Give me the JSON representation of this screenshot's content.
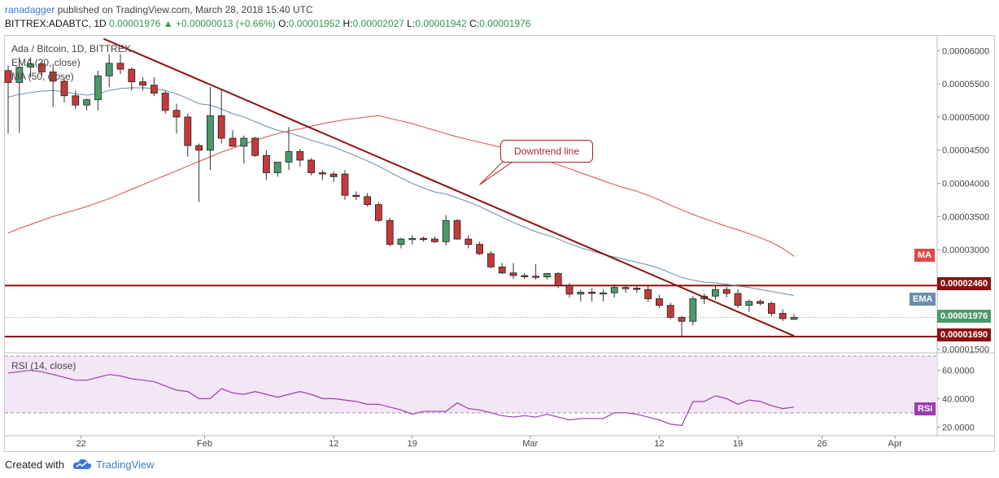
{
  "header": {
    "user": "ranadagger",
    "published": "published on TradingView.com, March 28, 2018 15:40 UTC",
    "symbol_line": "BITTREX:ADABTC, 1D",
    "last": "0.00001976",
    "change": "+0.00000013 (+0.66%)",
    "ohlc": {
      "O": "0.00001952",
      "H": "0.00002027",
      "L": "0.00001942",
      "C": "0.00001976"
    }
  },
  "legend": {
    "title": "Ada / Bitcoin, 1D, BITTREX",
    "ema": "EMA (20, close)",
    "ma": "MA (50, close)",
    "rsi": "RSI (14, close)"
  },
  "annotation": {
    "text": "Downtrend line"
  },
  "tags": {
    "ma": "MA",
    "resistance": "0.00002460",
    "ema": "EMA",
    "last": "0.00001976",
    "support": "0.00001690",
    "rsi": "RSI"
  },
  "colors": {
    "up": "#4a9a6a",
    "down": "#c43a3a",
    "ema": "#6a8caf",
    "ma": "#e04848",
    "trend": "#8b1111",
    "rsi": "#9b3bb0",
    "rsi_band": "#f3e6f6"
  },
  "footer": {
    "created_with": "Created with",
    "brand": "TradingView"
  },
  "chart_data": {
    "type": "candlestick",
    "price_axis": {
      "ticks": [
        "0.00006000",
        "0.00005500",
        "0.00005000",
        "0.00004500",
        "0.00004000",
        "0.00003500",
        "0.00003000",
        "0.00001500"
      ],
      "tick_values": [
        6e-05,
        5.5e-05,
        5e-05,
        4.5e-05,
        4e-05,
        3.5e-05,
        3e-05,
        1.5e-05
      ],
      "range": [
        1.47e-05,
        6.2e-05
      ]
    },
    "rsi_axis": {
      "ticks": [
        "60.0000",
        "40.0000",
        "20.0000"
      ],
      "tick_values": [
        60,
        40,
        20
      ],
      "range": [
        15,
        70
      ],
      "bands": [
        70,
        30
      ]
    },
    "x_axis": {
      "labels": [
        "22",
        "Feb",
        "12",
        "19",
        "Mar",
        "12",
        "19",
        "26",
        "Apr"
      ],
      "label_index": [
        6.5,
        17.5,
        29,
        36,
        46.5,
        58,
        65,
        72.5,
        79
      ]
    },
    "candles": [
      [
        5.7e-05,
        5.78e-05,
        4.75e-05,
        5.52e-05
      ],
      [
        5.52e-05,
        5.9e-05,
        4.76e-05,
        5.75e-05
      ],
      [
        5.75e-05,
        5.9e-05,
        5.6e-05,
        5.8e-05
      ],
      [
        5.8e-05,
        5.85e-05,
        5.62e-05,
        5.68e-05
      ],
      [
        5.68e-05,
        5.8e-05,
        5.15e-05,
        5.54e-05
      ],
      [
        5.54e-05,
        5.6e-05,
        5.22e-05,
        5.32e-05
      ],
      [
        5.32e-05,
        5.4e-05,
        5.12e-05,
        5.18e-05
      ],
      [
        5.18e-05,
        5.28e-05,
        5.1e-05,
        5.26e-05
      ],
      [
        5.26e-05,
        5.7e-05,
        5.1e-05,
        5.62e-05
      ],
      [
        5.62e-05,
        5.95e-05,
        5.45e-05,
        5.81e-05
      ],
      [
        5.81e-05,
        5.95e-05,
        5.65e-05,
        5.72e-05
      ],
      [
        5.72e-05,
        5.75e-05,
        5.4e-05,
        5.53e-05
      ],
      [
        5.53e-05,
        5.6e-05,
        5.4e-05,
        5.48e-05
      ],
      [
        5.48e-05,
        5.6e-05,
        5.32e-05,
        5.36e-05
      ],
      [
        5.36e-05,
        5.4e-05,
        5.05e-05,
        5.1e-05
      ],
      [
        5.1e-05,
        5.2e-05,
        4.75e-05,
        5e-05
      ],
      [
        5e-05,
        5.05e-05,
        4.4e-05,
        4.57e-05
      ],
      [
        4.57e-05,
        4.6e-05,
        3.72e-05,
        4.5e-05
      ],
      [
        4.5e-05,
        5.45e-05,
        4.2e-05,
        5.02e-05
      ],
      [
        5.02e-05,
        5.42e-05,
        4.6e-05,
        4.68e-05
      ],
      [
        4.68e-05,
        4.8e-05,
        4.55e-05,
        4.56e-05
      ],
      [
        4.56e-05,
        4.72e-05,
        4.3e-05,
        4.68e-05
      ],
      [
        4.68e-05,
        4.7e-05,
        4.4e-05,
        4.42e-05
      ],
      [
        4.42e-05,
        4.5e-05,
        4.05e-05,
        4.16e-05
      ],
      [
        4.16e-05,
        4.32e-05,
        4.1e-05,
        4.32e-05
      ],
      [
        4.32e-05,
        4.85e-05,
        4.2e-05,
        4.48e-05
      ],
      [
        4.48e-05,
        4.52e-05,
        4.25e-05,
        4.35e-05
      ],
      [
        4.35e-05,
        4.38e-05,
        4.12e-05,
        4.16e-05
      ],
      [
        4.16e-05,
        4.2e-05,
        4.05e-05,
        4.14e-05
      ],
      [
        4.14e-05,
        4.18e-05,
        4.02e-05,
        4.1e-05
      ],
      [
        4.14e-05,
        4.2e-05,
        3.75e-05,
        3.82e-05
      ],
      [
        3.82e-05,
        3.88e-05,
        3.75e-05,
        3.8e-05
      ],
      [
        3.8e-05,
        3.85e-05,
        3.65e-05,
        3.68e-05
      ],
      [
        3.68e-05,
        3.72e-05,
        3.42e-05,
        3.44e-05
      ],
      [
        3.44e-05,
        3.48e-05,
        3.05e-05,
        3.08e-05
      ],
      [
        3.08e-05,
        3.18e-05,
        3.02e-05,
        3.16e-05
      ],
      [
        3.16e-05,
        3.22e-05,
        3.08e-05,
        3.17e-05
      ],
      [
        3.17e-05,
        3.2e-05,
        3.12e-05,
        3.16e-05
      ],
      [
        3.16e-05,
        3.2e-05,
        3.1e-05,
        3.12e-05
      ],
      [
        3.12e-05,
        3.52e-05,
        3.06e-05,
        3.44e-05
      ],
      [
        3.44e-05,
        3.46e-05,
        3.15e-05,
        3.16e-05
      ],
      [
        3.16e-05,
        3.22e-05,
        3.02e-05,
        3.08e-05
      ],
      [
        3.08e-05,
        3.12e-05,
        2.92e-05,
        2.94e-05
      ],
      [
        2.94e-05,
        2.98e-05,
        2.72e-05,
        2.74e-05
      ],
      [
        2.74e-05,
        2.8e-05,
        2.63e-05,
        2.65e-05
      ],
      [
        2.65e-05,
        2.8e-05,
        2.56e-05,
        2.61e-05
      ],
      [
        2.61e-05,
        2.65e-05,
        2.56e-05,
        2.6e-05
      ],
      [
        2.6e-05,
        2.78e-05,
        2.55e-05,
        2.59e-05
      ],
      [
        2.59e-05,
        2.65e-05,
        2.55e-05,
        2.64e-05
      ],
      [
        2.64e-05,
        2.66e-05,
        2.42e-05,
        2.46e-05
      ],
      [
        2.46e-05,
        2.5e-05,
        2.28e-05,
        2.33e-05
      ],
      [
        2.33e-05,
        2.4e-05,
        2.22e-05,
        2.36e-05
      ],
      [
        2.36e-05,
        2.42e-05,
        2.22e-05,
        2.34e-05
      ],
      [
        2.34e-05,
        2.4e-05,
        2.22e-05,
        2.35e-05
      ],
      [
        2.35e-05,
        2.48e-05,
        2.28e-05,
        2.43e-05
      ],
      [
        2.43e-05,
        2.47e-05,
        2.35e-05,
        2.42e-05
      ],
      [
        2.42e-05,
        2.47e-05,
        2.35e-05,
        2.4e-05
      ],
      [
        2.4e-05,
        2.45e-05,
        2.22e-05,
        2.26e-05
      ],
      [
        2.26e-05,
        2.32e-05,
        2.12e-05,
        2.16e-05
      ],
      [
        2.16e-05,
        2.2e-05,
        1.95e-05,
        1.98e-05
      ],
      [
        1.98e-05,
        2e-05,
        1.7e-05,
        1.92e-05
      ],
      [
        1.92e-05,
        2.3e-05,
        1.86e-05,
        2.26e-05
      ],
      [
        2.26e-05,
        2.34e-05,
        2.18e-05,
        2.3e-05
      ],
      [
        2.3e-05,
        2.45e-05,
        2.25e-05,
        2.4e-05
      ],
      [
        2.4e-05,
        2.44e-05,
        2.28e-05,
        2.34e-05
      ],
      [
        2.34e-05,
        2.4e-05,
        2.12e-05,
        2.16e-05
      ],
      [
        2.16e-05,
        2.25e-05,
        2.06e-05,
        2.22e-05
      ],
      [
        2.22e-05,
        2.25e-05,
        2.16e-05,
        2.19e-05
      ],
      [
        2.19e-05,
        2.22e-05,
        2e-05,
        2.04e-05
      ],
      [
        2.04e-05,
        2.1e-05,
        1.92e-05,
        1.96e-05
      ],
      [
        1.95e-05,
        2.03e-05,
        1.94e-05,
        1.98e-05
      ]
    ],
    "ema20": [
      5.3e-05,
      5.34e-05,
      5.37e-05,
      5.39e-05,
      5.4e-05,
      5.38e-05,
      5.35e-05,
      5.33e-05,
      5.35e-05,
      5.4e-05,
      5.43e-05,
      5.44e-05,
      5.44e-05,
      5.43e-05,
      5.4e-05,
      5.35e-05,
      5.28e-05,
      5.2e-05,
      5.18e-05,
      5.12e-05,
      5.05e-05,
      5e-05,
      4.93e-05,
      4.86e-05,
      4.8e-05,
      4.76e-05,
      4.71e-05,
      4.65e-05,
      4.6e-05,
      4.55e-05,
      4.48e-05,
      4.41e-05,
      4.34e-05,
      4.26e-05,
      4.17e-05,
      4.08e-05,
      4e-05,
      3.93e-05,
      3.87e-05,
      3.84e-05,
      3.78e-05,
      3.72e-05,
      3.65e-05,
      3.57e-05,
      3.49e-05,
      3.41e-05,
      3.34e-05,
      3.27e-05,
      3.22e-05,
      3.16e-05,
      3.09e-05,
      3.03e-05,
      2.98e-05,
      2.93e-05,
      2.89e-05,
      2.85e-05,
      2.81e-05,
      2.77e-05,
      2.72e-05,
      2.65e-05,
      2.58e-05,
      2.54e-05,
      2.51e-05,
      2.5e-05,
      2.48e-05,
      2.45e-05,
      2.43e-05,
      2.4e-05,
      2.37e-05,
      2.34e-05,
      2.31e-05
    ],
    "ma50": [
      3.25e-05,
      3.32e-05,
      3.38e-05,
      3.44e-05,
      3.5e-05,
      3.55e-05,
      3.6e-05,
      3.65e-05,
      3.71e-05,
      3.77e-05,
      3.84e-05,
      3.91e-05,
      3.98e-05,
      4.05e-05,
      4.12e-05,
      4.19e-05,
      4.26e-05,
      4.33e-05,
      4.4e-05,
      4.47e-05,
      4.53e-05,
      4.59e-05,
      4.65e-05,
      4.7e-05,
      4.75e-05,
      4.79e-05,
      4.82e-05,
      4.86e-05,
      4.9e-05,
      4.93e-05,
      4.96e-05,
      4.98e-05,
      5e-05,
      5.02e-05,
      4.98e-05,
      4.94e-05,
      4.9e-05,
      4.85e-05,
      4.8e-05,
      4.75e-05,
      4.7e-05,
      4.66e-05,
      4.62e-05,
      4.58e-05,
      4.54e-05,
      4.5e-05,
      4.45e-05,
      4.4e-05,
      4.34e-05,
      4.28e-05,
      4.22e-05,
      4.16e-05,
      4.1e-05,
      4.04e-05,
      3.98e-05,
      3.93e-05,
      3.88e-05,
      3.82e-05,
      3.75e-05,
      3.67e-05,
      3.6e-05,
      3.53e-05,
      3.47e-05,
      3.41e-05,
      3.35e-05,
      3.3e-05,
      3.24e-05,
      3.18e-05,
      3.11e-05,
      3.02e-05,
      2.9e-05
    ],
    "rsi": [
      58,
      59,
      60,
      59,
      57,
      55,
      53,
      53,
      55,
      57,
      56,
      54,
      53,
      52,
      49,
      46,
      45,
      40,
      40,
      47,
      44,
      43,
      45,
      43,
      41,
      43,
      45,
      43,
      40,
      40,
      39,
      38,
      36,
      36,
      34,
      32,
      29,
      31,
      31,
      31,
      37,
      33,
      32,
      30,
      28,
      27,
      28,
      27,
      29,
      27,
      25,
      26,
      26,
      26,
      30,
      30,
      29,
      27,
      25,
      22,
      21,
      38,
      38,
      42,
      40,
      36,
      39,
      38,
      35,
      33,
      34
    ],
    "downtrend_line": {
      "from": [
        8.5,
        6.18e-05
      ],
      "to": [
        70,
        1.7e-05
      ]
    },
    "horizontal_levels": [
      2.46e-05,
      1.69e-05
    ],
    "annotation_anchor": [
      42,
      3.98e-05
    ]
  }
}
